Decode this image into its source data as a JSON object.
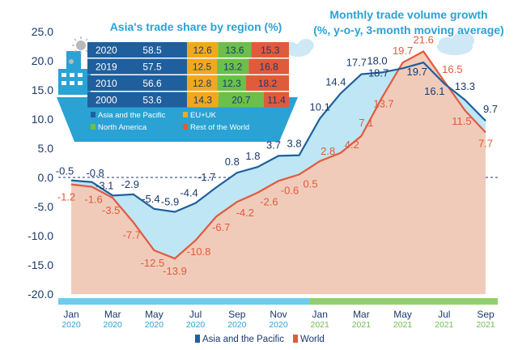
{
  "chart_data": [
    {
      "type": "area",
      "title": "Monthly trade volume growth",
      "subtitle": "(%, y-o-y, 3-month moving average)",
      "ylim": [
        -20,
        25
      ],
      "yticks": [
        "25.0",
        "20.0",
        "15.0",
        "10.0",
        "5.0",
        "0.0",
        "-5.0",
        "-10.0",
        "-15.0",
        "-20.0"
      ],
      "ytick_values": [
        25,
        20,
        15,
        10,
        5,
        0,
        -5,
        -10,
        -15,
        -20
      ],
      "x_month_labels": [
        {
          "i": 0,
          "month": "Jan",
          "year": "2020"
        },
        {
          "i": 2,
          "month": "Mar",
          "year": "2020"
        },
        {
          "i": 4,
          "month": "May",
          "year": "2020"
        },
        {
          "i": 6,
          "month": "Jul",
          "year": "2020"
        },
        {
          "i": 8,
          "month": "Sep",
          "year": "2020"
        },
        {
          "i": 10,
          "month": "Nov",
          "year": "2020"
        },
        {
          "i": 12,
          "month": "Jan",
          "year": "2021"
        },
        {
          "i": 14,
          "month": "Mar",
          "year": "2021"
        },
        {
          "i": 16,
          "month": "May",
          "year": "2021"
        },
        {
          "i": 18,
          "month": "Jul",
          "year": "2021"
        },
        {
          "i": 20,
          "month": "Sep",
          "year": "2021"
        }
      ],
      "series": [
        {
          "name": "Asia and the Pacific",
          "color": "#1f5f9e",
          "fill": "#bfe6f4",
          "values": [
            -0.5,
            -0.8,
            -3.1,
            -2.9,
            -5.4,
            -5.9,
            -4.4,
            -1.7,
            0.8,
            1.8,
            3.7,
            3.8,
            10.1,
            14.4,
            17.7,
            18.0,
            18.7,
            19.7,
            16.1,
            13.3,
            9.7
          ],
          "labels": [
            "-0.5",
            "-0.8",
            "-3.1",
            "-2.9",
            "-5.4",
            "-5.9",
            "-4.4",
            "-1.7",
            "0.8",
            "1.8",
            "3.7",
            "3.8",
            "10.1",
            "14.4",
            "17.7",
            "18.0",
            "18.7",
            "19.7",
            "16.1",
            "13.3",
            "9.7"
          ]
        },
        {
          "name": "World",
          "color": "#e05a3c",
          "fill": "#f3c9b6",
          "values": [
            -1.2,
            -1.6,
            -3.5,
            -7.7,
            -12.5,
            -13.9,
            -10.8,
            -6.7,
            -4.2,
            -2.6,
            -0.6,
            0.5,
            2.8,
            4.2,
            7.1,
            13.7,
            19.7,
            21.6,
            16.5,
            11.5,
            7.7
          ],
          "labels": [
            "-1.2",
            "-1.6",
            "-3.5",
            "-7.7",
            "-12.5",
            "-13.9",
            "-10.8",
            "-6.7",
            "-4.2",
            "-2.6",
            "-0.6",
            "0.5",
            "2.8",
            "4.2",
            "7.1",
            "13.7",
            "19.7",
            "21.6",
            "16.5",
            "11.5",
            "7.7"
          ]
        }
      ]
    },
    {
      "type": "table",
      "title": "Asia's trade share by region (%)",
      "rows": [
        {
          "year": "2020",
          "values": [
            "58.5",
            "12.6",
            "13.6",
            "15.3"
          ]
        },
        {
          "year": "2019",
          "values": [
            "57.5",
            "12.5",
            "13.2",
            "16.8"
          ]
        },
        {
          "year": "2010",
          "values": [
            "56.6",
            "12.8",
            "12.3",
            "18.2"
          ]
        },
        {
          "year": "2000",
          "values": [
            "53.6",
            "14.3",
            "20.7",
            "11.4"
          ]
        }
      ],
      "categories": [
        {
          "name": "Asia and the Pacific",
          "color": "#1f5f9e"
        },
        {
          "name": "EU+UK",
          "color": "#f0a91d"
        },
        {
          "name": "North America",
          "color": "#6cbf4a"
        },
        {
          "name": "Rest of the World",
          "color": "#e05a3c"
        }
      ]
    }
  ],
  "legend": [
    {
      "name": "Asia and the Pacific",
      "color": "#1f5f9e"
    },
    {
      "name": "World",
      "color": "#e05a3c"
    }
  ],
  "colors": {
    "axis_text": "#1a3a6b",
    "bar_2020": "#6ccdec",
    "bar_2021": "#8fd06c",
    "ship": "#2aa2d4",
    "sun": "#b9b9b9",
    "cloud": "#cfe8f5"
  }
}
